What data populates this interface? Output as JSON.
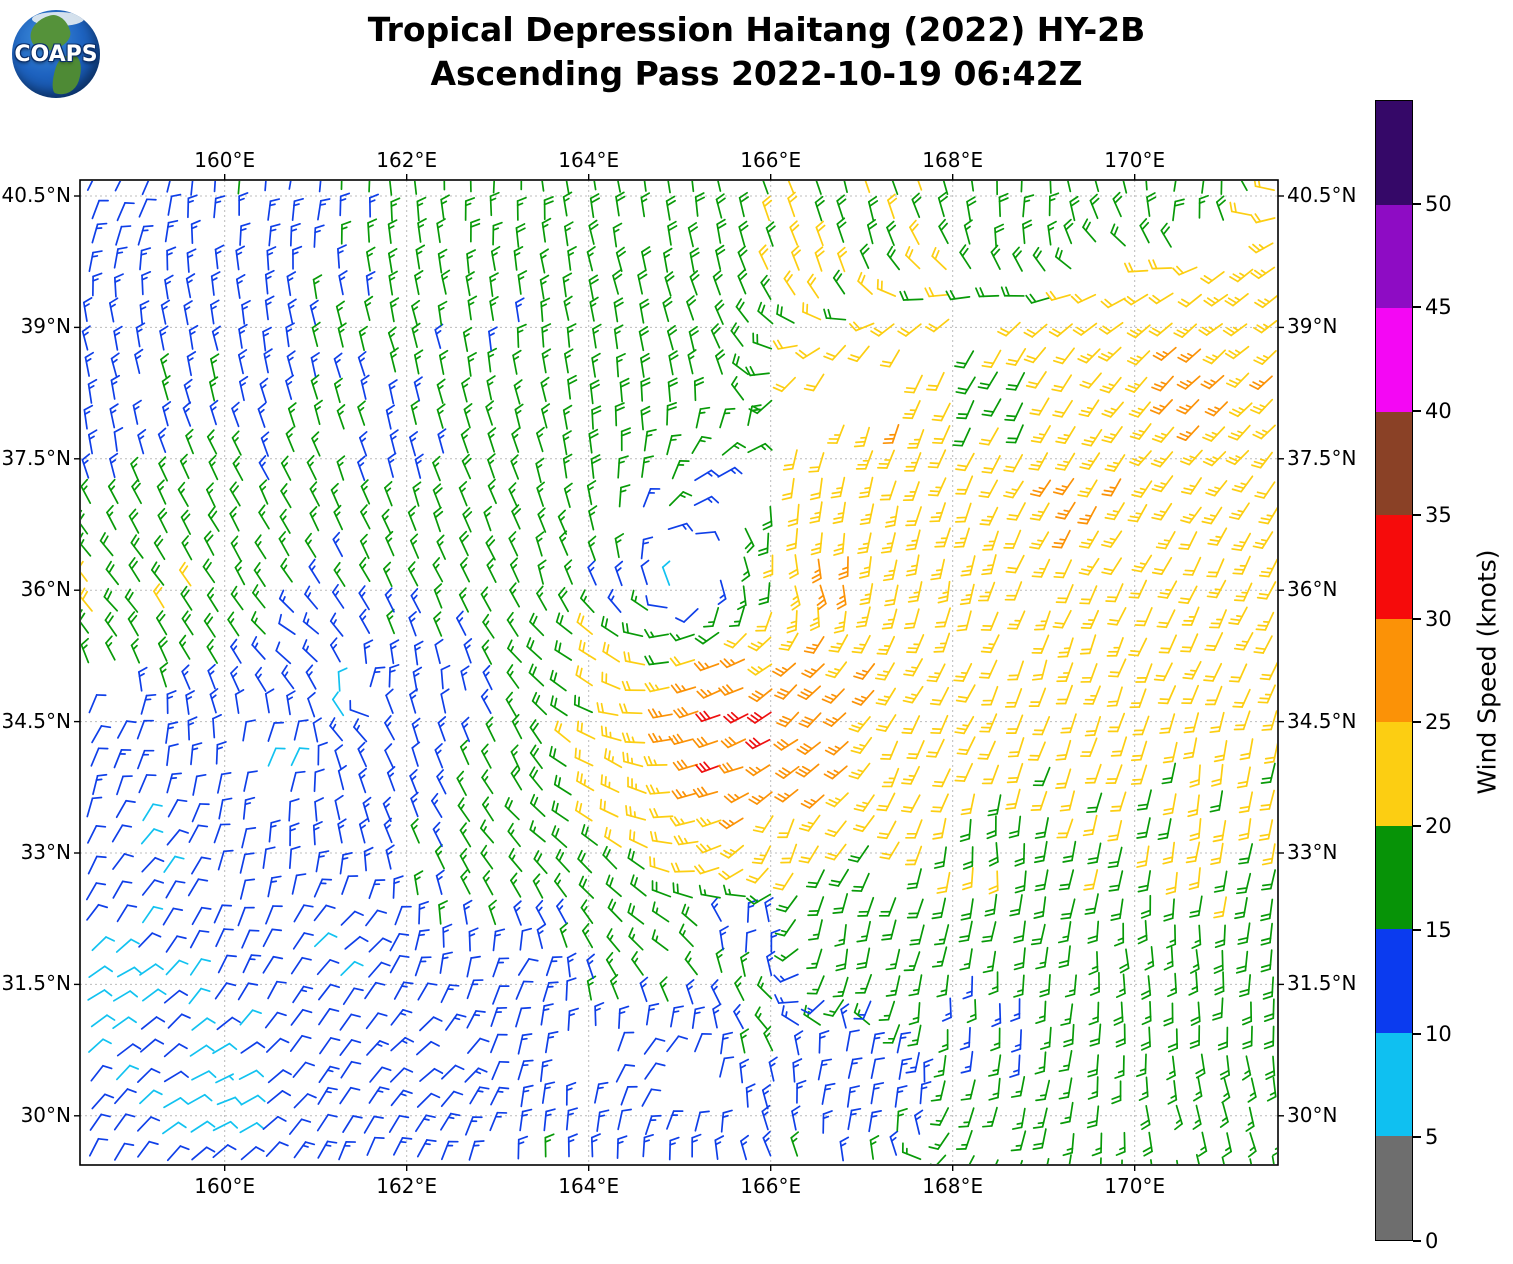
{
  "header": {
    "title_line1": "Tropical Depression Haitang (2022) HY-2B",
    "title_line2": "Ascending Pass 2022-10-19 06:42Z"
  },
  "logo": {
    "text": "COAPS"
  },
  "map": {
    "lon_ticks": [
      {
        "value": 160,
        "label": "160°E"
      },
      {
        "value": 162,
        "label": "162°E"
      },
      {
        "value": 164,
        "label": "164°E"
      },
      {
        "value": 166,
        "label": "166°E"
      },
      {
        "value": 168,
        "label": "168°E"
      },
      {
        "value": 170,
        "label": "170°E"
      }
    ],
    "lat_ticks": [
      {
        "value": 40.5,
        "label": "40.5°N"
      },
      {
        "value": 39,
        "label": "39°N"
      },
      {
        "value": 37.5,
        "label": "37.5°N"
      },
      {
        "value": 36,
        "label": "36°N"
      },
      {
        "value": 34.5,
        "label": "34.5°N"
      },
      {
        "value": 33,
        "label": "33°N"
      },
      {
        "value": 31.5,
        "label": "31.5°N"
      },
      {
        "value": 30,
        "label": "30°N"
      }
    ],
    "lon_range": [
      158.41,
      171.57
    ],
    "lat_range": [
      29.44,
      40.68
    ],
    "grid_on": true
  },
  "colorbar": {
    "label": "Wind Speed (knots)",
    "ticks": [
      0,
      5,
      10,
      15,
      20,
      25,
      30,
      35,
      40,
      45,
      50
    ],
    "max_value": 55,
    "segments": [
      {
        "from": 0,
        "to": 5,
        "color": "#6E6E6E"
      },
      {
        "from": 5,
        "to": 10,
        "color": "#0FC0F1"
      },
      {
        "from": 10,
        "to": 15,
        "color": "#0B3BEF"
      },
      {
        "from": 15,
        "to": 20,
        "color": "#079307"
      },
      {
        "from": 20,
        "to": 25,
        "color": "#FCCE12"
      },
      {
        "from": 25,
        "to": 30,
        "color": "#FB9207"
      },
      {
        "from": 30,
        "to": 35,
        "color": "#F60B0B"
      },
      {
        "from": 35,
        "to": 40,
        "color": "#8A4126"
      },
      {
        "from": 40,
        "to": 45,
        "color": "#F407F4"
      },
      {
        "from": 45,
        "to": 50,
        "color": "#8E0CC4"
      },
      {
        "from": 50,
        "to": 55,
        "color": "#350868"
      }
    ]
  },
  "chart_data": {
    "type": "wind_barb_map",
    "title": "Tropical Depression Haitang (2022) HY-2B Ascending Pass 2022-10-19 06:42Z",
    "units": "knots",
    "legend_position": "right",
    "barb_convention": "half_barb_5kt_full_barb_10kt_feathers_at_upwind_end",
    "grid": {
      "lon_start": 158.52,
      "lon_step": 0.277,
      "cols": 48,
      "lat_start": 29.52,
      "lat_step": 0.298,
      "rows": 38
    },
    "cyclone_center": {
      "lon": 165.0,
      "lat": 36.05
    },
    "secondary_eddy_center": {
      "lon": 161.4,
      "lat": 34.65
    },
    "wind_controls_format": [
      "lon_deg_E",
      "lat_deg_N",
      "speed_knots",
      "wind_from_deg"
    ],
    "wind_controls": [
      [
        158.7,
        40.4,
        12,
        25
      ],
      [
        160.8,
        40.3,
        14,
        10
      ],
      [
        163.0,
        40.35,
        17,
        0
      ],
      [
        165.0,
        40.2,
        18,
        352
      ],
      [
        166.8,
        40.1,
        21,
        345
      ],
      [
        168.7,
        40.3,
        17,
        2
      ],
      [
        170.6,
        40.4,
        17,
        8
      ],
      [
        171.2,
        39.5,
        24,
        232
      ],
      [
        170.7,
        38.3,
        27,
        225
      ],
      [
        169.3,
        37.2,
        26,
        212
      ],
      [
        171.1,
        36.0,
        23,
        205
      ],
      [
        169.2,
        35.0,
        22,
        196
      ],
      [
        170.8,
        33.7,
        21,
        186
      ],
      [
        168.3,
        33.1,
        19,
        176
      ],
      [
        170.2,
        31.8,
        17,
        172
      ],
      [
        170.9,
        30.0,
        16,
        163
      ],
      [
        168.2,
        31.3,
        14,
        178
      ],
      [
        167.0,
        30.4,
        12,
        14
      ],
      [
        165.8,
        32.0,
        12,
        8
      ],
      [
        164.8,
        30.5,
        10,
        38
      ],
      [
        163.3,
        31.6,
        11,
        35
      ],
      [
        162.2,
        30.6,
        11,
        52
      ],
      [
        159.9,
        30.3,
        8,
        68
      ],
      [
        158.7,
        31.4,
        8,
        60
      ],
      [
        161.3,
        31.9,
        10,
        50
      ],
      [
        159.2,
        33.0,
        10,
        42
      ],
      [
        158.7,
        34.4,
        11,
        30
      ],
      [
        158.65,
        35.9,
        20,
        318
      ],
      [
        159.5,
        36.0,
        21,
        325
      ],
      [
        159.9,
        36.5,
        17,
        332
      ],
      [
        158.7,
        37.8,
        13,
        352
      ],
      [
        160.4,
        38.8,
        13,
        350
      ],
      [
        162.0,
        37.6,
        14,
        348
      ],
      [
        163.2,
        38.8,
        15,
        355
      ],
      [
        164.4,
        37.8,
        19,
        355
      ],
      [
        162.6,
        36.7,
        19,
        340
      ],
      [
        163.6,
        36.1,
        16,
        345
      ],
      [
        160.9,
        35.3,
        13,
        300
      ],
      [
        162.4,
        34.8,
        12,
        355
      ],
      [
        160.6,
        34.1,
        9,
        30
      ],
      [
        162.2,
        34.2,
        12,
        345
      ],
      [
        162.0,
        35.0,
        13,
        350
      ],
      [
        165.0,
        36.5,
        11,
        88
      ],
      [
        165.45,
        36.05,
        13,
        168
      ],
      [
        165.0,
        35.6,
        14,
        258
      ],
      [
        164.55,
        36.05,
        12,
        348
      ],
      [
        164.6,
        37.4,
        16,
        10
      ],
      [
        165.3,
        37.2,
        14,
        60
      ],
      [
        166.5,
        36.1,
        27,
        162
      ],
      [
        165.35,
        34.5,
        31,
        252
      ],
      [
        165.9,
        34.35,
        32,
        240
      ],
      [
        166.35,
        34.75,
        30,
        222
      ],
      [
        165.5,
        33.9,
        31,
        255
      ],
      [
        166.3,
        34.1,
        29,
        235
      ],
      [
        165.5,
        34.9,
        29,
        250
      ],
      [
        164.15,
        35.25,
        22,
        305
      ],
      [
        163.2,
        34.1,
        17,
        335
      ],
      [
        164.3,
        33.8,
        25,
        300
      ],
      [
        164.2,
        32.7,
        19,
        315
      ],
      [
        163.6,
        32.2,
        15,
        335
      ],
      [
        166.9,
        37.1,
        24,
        188
      ],
      [
        167.9,
        36.2,
        23,
        188
      ],
      [
        167.3,
        37.9,
        26,
        200
      ],
      [
        168.5,
        38.1,
        18,
        205
      ],
      [
        166.2,
        33.3,
        21,
        195
      ],
      [
        167.5,
        34.2,
        23,
        200
      ],
      [
        166.8,
        32.2,
        17,
        185
      ]
    ],
    "data_voids_format": [
      "lon_center",
      "lat_center",
      "rx_deg",
      "ry_deg"
    ],
    "data_voids": [
      [
        165.08,
        36.33,
        0.36,
        0.3
      ],
      [
        164.5,
        36.6,
        0.22,
        0.15
      ],
      [
        165.45,
        36.95,
        0.25,
        0.18
      ],
      [
        165.8,
        37.35,
        0.3,
        0.22
      ],
      [
        166.35,
        37.95,
        0.4,
        0.3
      ],
      [
        167.1,
        38.35,
        0.45,
        0.3
      ],
      [
        167.8,
        38.75,
        0.38,
        0.26
      ],
      [
        168.35,
        39.0,
        0.28,
        0.2
      ],
      [
        169.7,
        39.7,
        0.25,
        0.18
      ],
      [
        171.0,
        39.95,
        0.3,
        0.15
      ],
      [
        163.9,
        30.55,
        0.45,
        0.3
      ],
      [
        165.15,
        30.2,
        0.4,
        0.28
      ],
      [
        158.75,
        34.8,
        0.28,
        0.35
      ]
    ],
    "speed_bins": [
      {
        "max": 5,
        "color": "#6E6E6E"
      },
      {
        "max": 10,
        "color": "#12C2F0"
      },
      {
        "max": 15,
        "color": "#0F3FE8"
      },
      {
        "max": 20,
        "color": "#089A08"
      },
      {
        "max": 25,
        "color": "#FCCE12"
      },
      {
        "max": 30,
        "color": "#FB9207"
      },
      {
        "max": 35,
        "color": "#EE1010"
      },
      {
        "max": 40,
        "color": "#8A4126"
      },
      {
        "max": 45,
        "color": "#F407F4"
      },
      {
        "max": 50,
        "color": "#8E0CC4"
      },
      {
        "max": 999,
        "color": "#350868"
      }
    ],
    "gridline_color": "#bcbcbc"
  }
}
